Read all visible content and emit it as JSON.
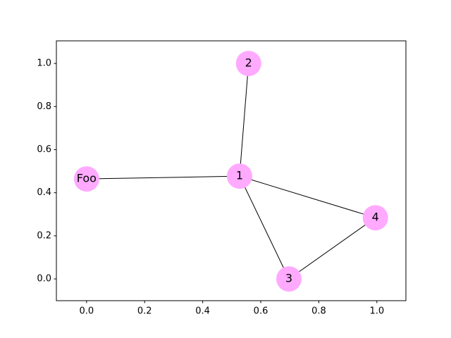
{
  "chart_data": {
    "type": "network",
    "nodes": [
      {
        "label": "Foo",
        "x": 0.0,
        "y": 0.464
      },
      {
        "label": "1",
        "x": 0.527,
        "y": 0.477
      },
      {
        "label": "2",
        "x": 0.558,
        "y": 1.0
      },
      {
        "label": "3",
        "x": 0.697,
        "y": 0.0
      },
      {
        "label": "4",
        "x": 0.995,
        "y": 0.284
      }
    ],
    "edges": [
      [
        0,
        1
      ],
      [
        1,
        2
      ],
      [
        1,
        3
      ],
      [
        1,
        4
      ],
      [
        3,
        4
      ]
    ],
    "color": "#ffaaff",
    "xlim": [
      -0.104,
      1.1
    ],
    "ylim": [
      -0.101,
      1.105
    ],
    "xticks": [
      {
        "value": 0,
        "label": "0.0"
      },
      {
        "value": 0.2,
        "label": "0.2"
      },
      {
        "value": 0.4,
        "label": "0.4"
      },
      {
        "value": 0.6,
        "label": "0.6"
      },
      {
        "value": 0.8,
        "label": "0.8"
      },
      {
        "value": 1,
        "label": "1.0"
      }
    ],
    "yticks": [
      {
        "value": 0,
        "label": "0.0"
      },
      {
        "value": 0.2,
        "label": "0.2"
      },
      {
        "value": 0.4,
        "label": "0.4"
      },
      {
        "value": 0.6,
        "label": "0.6"
      },
      {
        "value": 0.8,
        "label": "0.8"
      },
      {
        "value": 1,
        "label": "1.0"
      }
    ]
  }
}
